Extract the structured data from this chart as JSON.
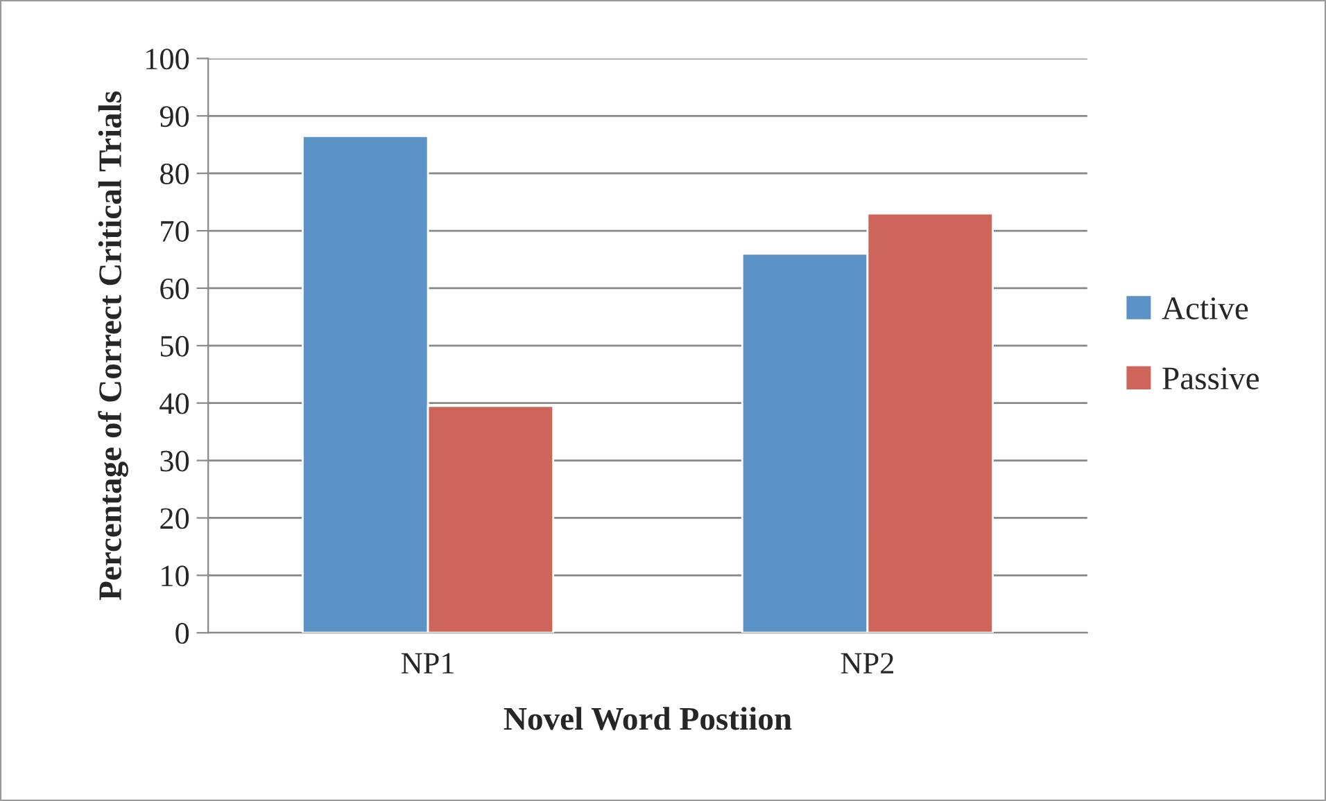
{
  "chart_data": {
    "type": "bar",
    "xlabel": "Novel Word Postiion",
    "ylabel": "Percentage of Correct Critical Trials",
    "categories": [
      "NP1",
      "NP2"
    ],
    "series": [
      {
        "name": "Active",
        "color": "#5b93c7",
        "values": [
          86.5,
          66
        ]
      },
      {
        "name": "Passive",
        "color": "#cd655b",
        "values": [
          39.5,
          73
        ]
      }
    ],
    "ylim": [
      0,
      100
    ],
    "yticks": [
      0,
      10,
      20,
      30,
      40,
      50,
      60,
      70,
      80,
      90,
      100
    ],
    "grid": "y",
    "legend": "right"
  }
}
